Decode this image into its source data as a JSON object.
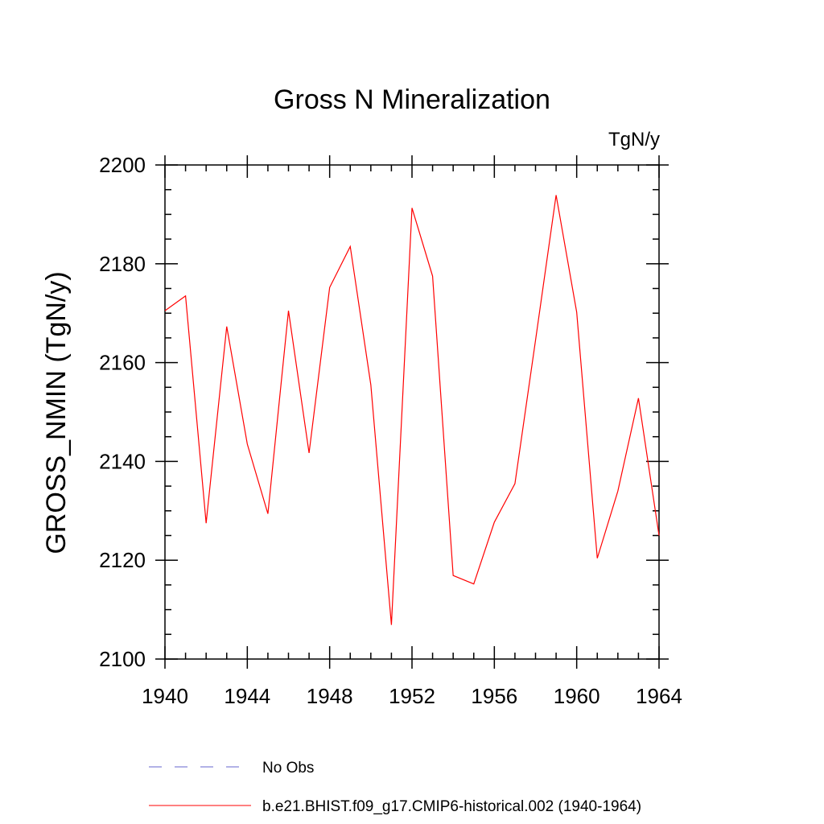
{
  "chart_data": {
    "type": "line",
    "title": "Gross N Mineralization",
    "units_label": "TgN/y",
    "xlabel": "",
    "ylabel": "GROSS_NMIN  (TgN/y)",
    "xlim": [
      1940,
      1964
    ],
    "ylim": [
      2100,
      2200
    ],
    "x_ticks": [
      1940,
      1944,
      1948,
      1952,
      1956,
      1960,
      1964
    ],
    "y_ticks": [
      2100,
      2120,
      2140,
      2160,
      2180,
      2200
    ],
    "grid": false,
    "legend_position": "bottom-left",
    "x": [
      1940,
      1941,
      1942,
      1943,
      1944,
      1945,
      1946,
      1947,
      1948,
      1949,
      1950,
      1951,
      1952,
      1953,
      1954,
      1955,
      1956,
      1957,
      1958,
      1959,
      1960,
      1961,
      1962,
      1963,
      1964
    ],
    "series": [
      {
        "name": "b.e21.BHIST.f09_g17.CMIP6-historical.002 (1940-1964)",
        "color": "#ff0000",
        "dash": "solid",
        "values": [
          2170.5,
          2173.5,
          2127.5,
          2167.3,
          2143.5,
          2129.4,
          2170.5,
          2141.7,
          2175.2,
          2183.5,
          2155.5,
          2106.9,
          2191.3,
          2177.5,
          2116.9,
          2115.2,
          2127.7,
          2135.5,
          2164.5,
          2193.9,
          2170.2,
          2120.4,
          2134.0,
          2152.8,
          2125.0
        ]
      }
    ],
    "legend": [
      {
        "label": "No Obs",
        "color": "#6666cc",
        "dash": "dashed"
      },
      {
        "label": "b.e21.BHIST.f09_g17.CMIP6-historical.002 (1940-1964)",
        "color": "#ff0000",
        "dash": "solid"
      }
    ]
  }
}
